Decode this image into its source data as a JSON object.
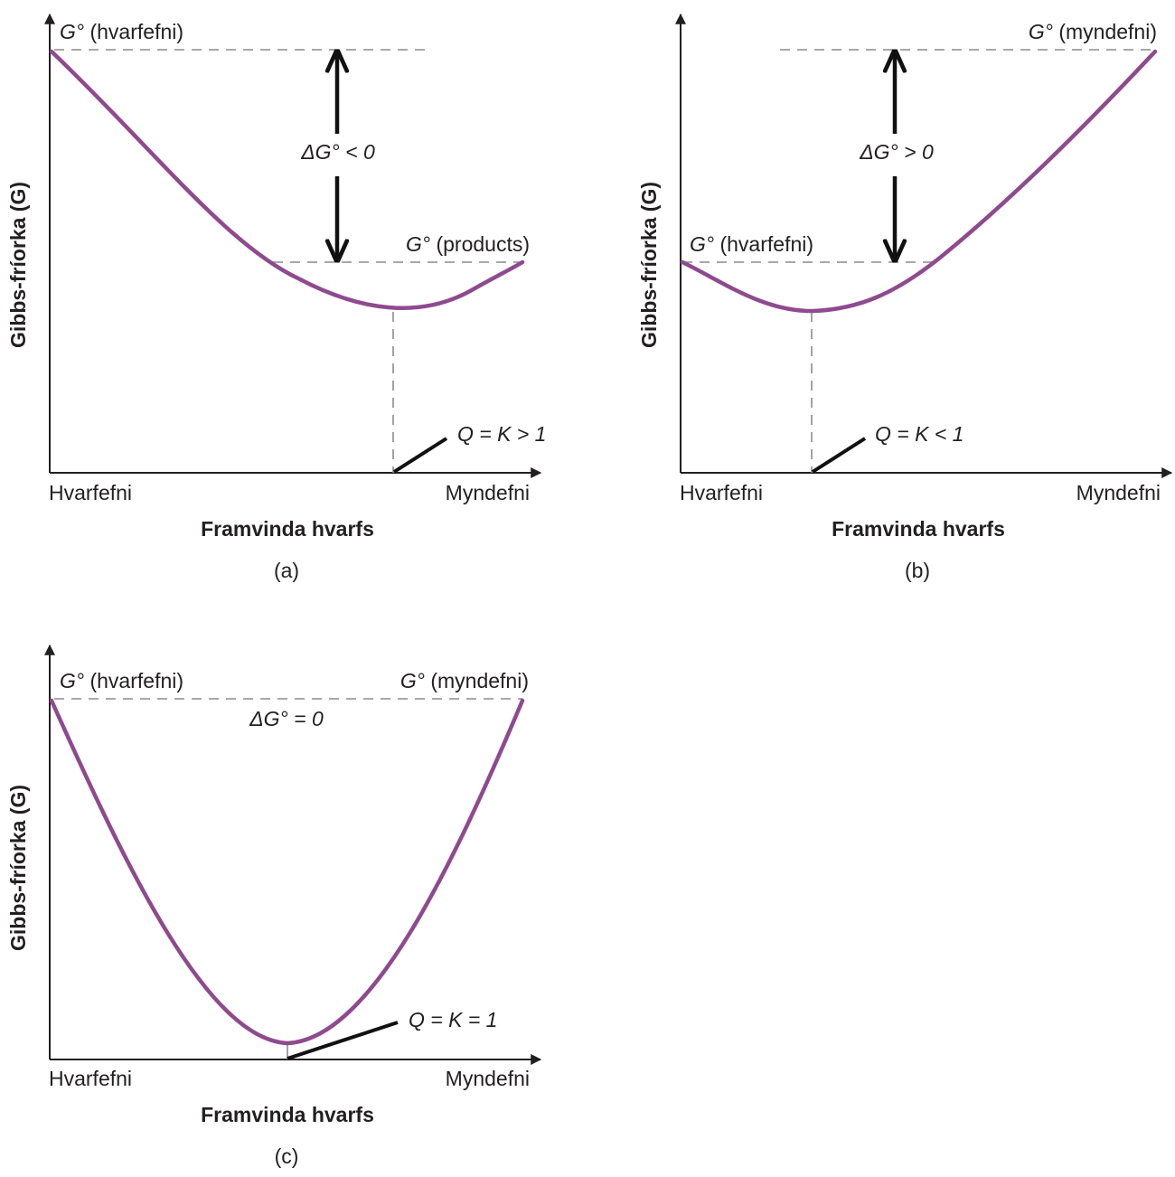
{
  "colors": {
    "curve": "#8f4a8f",
    "axis": "#231f20",
    "dashed": "#8c8c8c"
  },
  "panels": {
    "a": {
      "caption": "(a)",
      "y_axis_label": "Gibbs-fríorka (G)",
      "x_axis_label": "Framvinda hvarfs",
      "x_start_label": "Hvarfefni",
      "x_end_label": "Myndefni",
      "g_top_prefix": "G°",
      "g_top_suffix": "(hvarfefni)",
      "g_low_prefix": "G°",
      "g_low_suffix": "(products)",
      "delta_g": "ΔG° < 0",
      "equilibrium": "Q = K > 1"
    },
    "b": {
      "caption": "(b)",
      "y_axis_label": "Gibbs-fríorka (G)",
      "x_axis_label": "Framvinda hvarfs",
      "x_start_label": "Hvarfefni",
      "x_end_label": "Myndefni",
      "g_top_prefix": "G°",
      "g_top_suffix": "(myndefni)",
      "g_low_prefix": "G°",
      "g_low_suffix": "(hvarfefni)",
      "delta_g": "ΔG° > 0",
      "equilibrium": "Q = K < 1"
    },
    "c": {
      "caption": "(c)",
      "y_axis_label": "Gibbs-fríorka (G)",
      "x_axis_label": "Framvinda hvarfs",
      "x_start_label": "Hvarfefni",
      "x_end_label": "Myndefni",
      "g_left_prefix": "G°",
      "g_left_suffix": "(hvarfefni)",
      "g_right_prefix": "G°",
      "g_right_suffix": "(myndefni)",
      "delta_g": "ΔG° = 0",
      "equilibrium": "Q = K = 1"
    }
  }
}
